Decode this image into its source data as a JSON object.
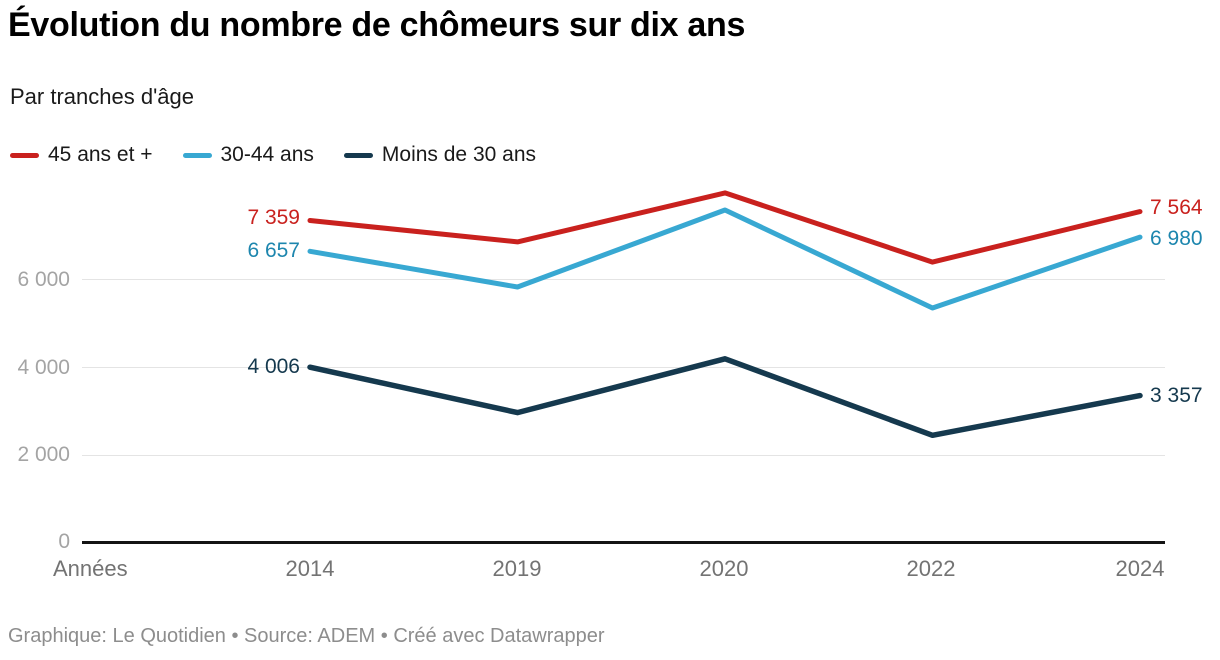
{
  "header": {
    "title": "Évolution du nombre de chômeurs sur dix ans",
    "subtitle": "Par tranches d'âge"
  },
  "legend": {
    "items": [
      {
        "label": "45 ans et +",
        "color": "#c9211e"
      },
      {
        "label": "30-44 ans",
        "color": "#38a8d2"
      },
      {
        "label": "Moins de 30 ans",
        "color": "#15394e"
      }
    ]
  },
  "axis": {
    "x_title": "Années",
    "x_labels": [
      "2014",
      "2019",
      "2020",
      "2022",
      "2024"
    ],
    "y_tick_labels": [
      "0",
      "2 000",
      "4 000",
      "6 000"
    ]
  },
  "value_labels": {
    "start": [
      {
        "text": "7 359",
        "color": "#c9211e"
      },
      {
        "text": "6 657",
        "color": "#1d86ae"
      },
      {
        "text": "4 006",
        "color": "#15394e"
      }
    ],
    "end": [
      {
        "text": "7 564",
        "color": "#c9211e"
      },
      {
        "text": "6 980",
        "color": "#1d86ae"
      },
      {
        "text": "3 357",
        "color": "#15394e"
      }
    ]
  },
  "footer": {
    "credit": "Graphique: Le Quotidien • Source: ADEM • Créé avec Datawrapper"
  },
  "chart_data": {
    "type": "line",
    "title": "Évolution du nombre de chômeurs sur dix ans",
    "subtitle": "Par tranches d'âge",
    "categories": [
      "2014",
      "2019",
      "2020",
      "2022",
      "2024"
    ],
    "x_axis_title": "Années",
    "series": [
      {
        "name": "45 ans et +",
        "color": "#c9211e",
        "values": [
          7359,
          6870,
          7990,
          6410,
          7564
        ]
      },
      {
        "name": "30-44 ans",
        "color": "#38a8d2",
        "values": [
          6657,
          5840,
          7600,
          5360,
          6980
        ]
      },
      {
        "name": "Moins de 30 ans",
        "color": "#15394e",
        "values": [
          4006,
          2970,
          4200,
          2450,
          3357
        ]
      }
    ],
    "labeled_points": {
      "first": [
        7359,
        6657,
        4006
      ],
      "last": [
        7564,
        6980,
        3357
      ]
    },
    "values_estimated_at": [
      "2019",
      "2020",
      "2022"
    ],
    "ylim": [
      0,
      8400
    ],
    "y_ticks": [
      0,
      2000,
      4000,
      6000
    ],
    "grid": "horizontal",
    "legend_position": "top"
  }
}
